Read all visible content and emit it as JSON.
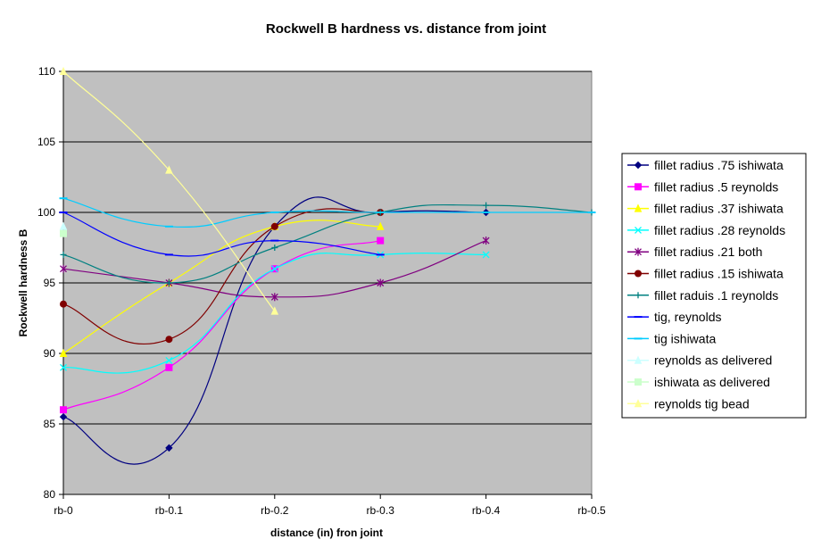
{
  "chart_data": {
    "type": "line",
    "title": "Rockwell B hardness vs. distance from joint",
    "xlabel": "distance (in) fron joint",
    "ylabel": "Rockwell hardness B",
    "categories": [
      "rb-0",
      "rb-0.1",
      "rb-0.2",
      "rb-0.3",
      "rb-0.4",
      "rb-0.5"
    ],
    "ylim": [
      80,
      110
    ],
    "yticks": [
      80,
      85,
      90,
      95,
      100,
      105,
      110
    ],
    "grid": "horizontal",
    "legend_position": "right",
    "plot_background": "#c0c0c0",
    "series": [
      {
        "name": "fillet radius .75 ishiwata",
        "color": "#000080",
        "marker": "diamond",
        "values": [
          85.5,
          83.3,
          99,
          100,
          100,
          null
        ]
      },
      {
        "name": "fillet radius .5 reynolds",
        "color": "#ff00ff",
        "marker": "square",
        "values": [
          86,
          89,
          96,
          98,
          null,
          null
        ]
      },
      {
        "name": "fillet radius .37 ishiwata",
        "color": "#ffff00",
        "marker": "triangle",
        "values": [
          90,
          95,
          99,
          99,
          null,
          null
        ]
      },
      {
        "name": "fillet radius .28 reynolds",
        "color": "#00ffff",
        "marker": "x",
        "values": [
          89,
          89.5,
          96,
          97,
          97,
          null
        ]
      },
      {
        "name": "fillet radius .21 both",
        "color": "#800080",
        "marker": "star",
        "values": [
          96,
          95,
          94,
          95,
          98,
          null
        ]
      },
      {
        "name": "fillet radius .15 ishiwata",
        "color": "#800000",
        "marker": "circle",
        "values": [
          93.5,
          91,
          99,
          100,
          null,
          null
        ]
      },
      {
        "name": "fillet raduis .1 reynolds",
        "color": "#008080",
        "marker": "plus",
        "values": [
          97,
          95,
          97.5,
          100,
          100.5,
          100
        ]
      },
      {
        "name": "tig, reynolds",
        "color": "#0000ff",
        "marker": "dash",
        "values": [
          100,
          97,
          98,
          97,
          null,
          null
        ]
      },
      {
        "name": "tig ishiwata",
        "color": "#00ccff",
        "marker": "dash",
        "values": [
          101,
          99,
          100,
          100,
          100,
          100
        ]
      },
      {
        "name": "reynolds as delivered",
        "color": "#ccffff",
        "marker": "triangle",
        "values": [
          99,
          null,
          null,
          null,
          null,
          null
        ]
      },
      {
        "name": "ishiwata as delivered",
        "color": "#ccffcc",
        "marker": "square",
        "values": [
          98.5,
          null,
          null,
          null,
          null,
          null
        ]
      },
      {
        "name": "reynolds tig bead",
        "color": "#ffff99",
        "marker": "triangle",
        "values": [
          110,
          103,
          93,
          null,
          null,
          null
        ]
      }
    ]
  }
}
